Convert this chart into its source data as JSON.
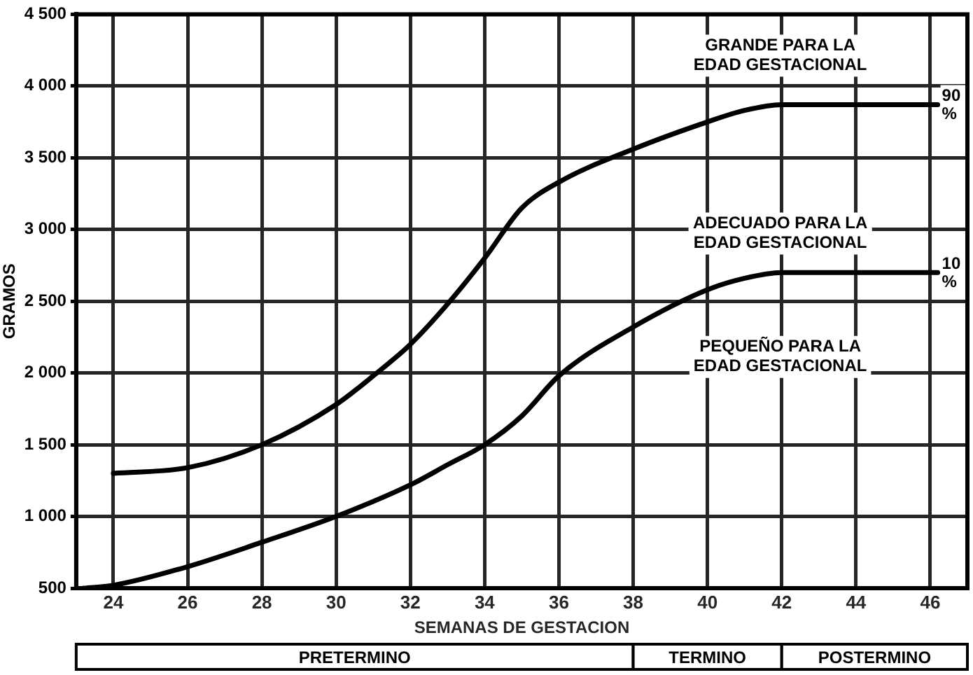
{
  "chart_data": {
    "type": "line",
    "xlabel": "SEMANAS DE GESTACION",
    "ylabel": "GRAMOS",
    "xlim": [
      23,
      47
    ],
    "xticks": [
      24,
      26,
      28,
      30,
      32,
      34,
      36,
      38,
      40,
      42,
      44,
      46
    ],
    "ylim": [
      500,
      4500
    ],
    "yticks": [
      {
        "value": 4500,
        "label": "4 500"
      },
      {
        "value": 4000,
        "label": "4 000"
      },
      {
        "value": 3500,
        "label": "3 500"
      },
      {
        "value": 3000,
        "label": "3 000"
      },
      {
        "value": 2500,
        "label": "2 500"
      },
      {
        "value": 2000,
        "label": "2 000"
      },
      {
        "value": 1500,
        "label": "1 500"
      },
      {
        "value": 1000,
        "label": "1 000"
      },
      500
    ],
    "grid": true,
    "marker": "none",
    "line_style": "solid",
    "series": [
      {
        "name": "90 %",
        "color": "#000000",
        "x": [
          24,
          26,
          28,
          30,
          31,
          32,
          33,
          34,
          35,
          36,
          38,
          40,
          41,
          42,
          44,
          46.2
        ],
        "values": [
          1300,
          1340,
          1500,
          1780,
          1980,
          2200,
          2480,
          2800,
          3150,
          3330,
          3560,
          3750,
          3830,
          3870,
          3870,
          3870
        ]
      },
      {
        "name": "10 %",
        "color": "#000000",
        "x": [
          23.2,
          24,
          26,
          28,
          30,
          32,
          33,
          34,
          35,
          36,
          38,
          40,
          41,
          42,
          44,
          46.2
        ],
        "values": [
          500,
          520,
          650,
          820,
          1000,
          1220,
          1360,
          1500,
          1700,
          1980,
          2320,
          2580,
          2660,
          2700,
          2700,
          2700
        ]
      }
    ],
    "annotations": [
      "GRANDE PARA LA\nEDAD GESTACIONAL",
      "ADECUADO PARA LA\nEDAD GESTACIONAL",
      "PEQUEÑO PARA LA\nEDAD GESTACIONAL"
    ],
    "bands": [
      {
        "axis": "x",
        "from": 23,
        "to": 38,
        "label": "PRETERMINO",
        "color": "#ffffff"
      },
      {
        "axis": "x",
        "from": 38,
        "to": 42,
        "label": "TERMINO",
        "color": "#ffffff"
      },
      {
        "axis": "x",
        "from": 42,
        "to": 47,
        "label": "POSTERMINO",
        "color": "#ffffff"
      }
    ]
  }
}
